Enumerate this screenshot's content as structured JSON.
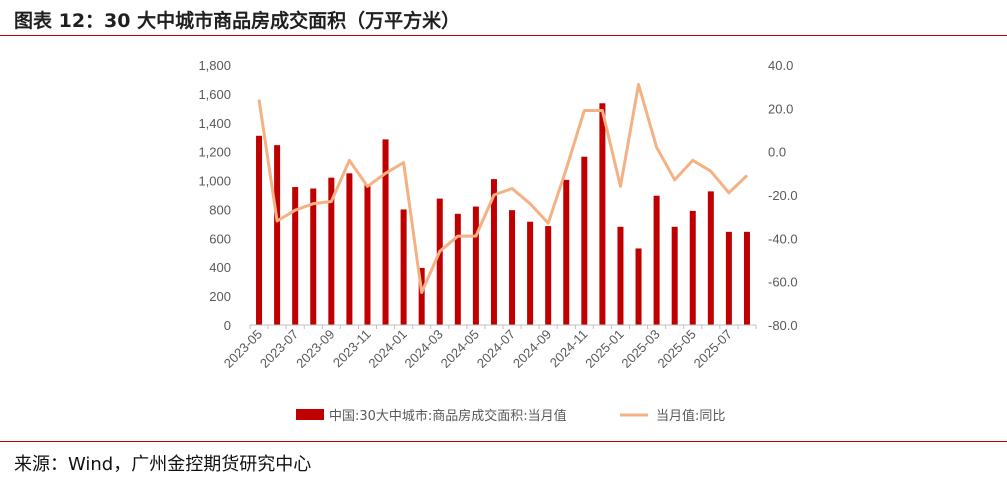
{
  "header": {
    "title": "图表 12：30 大中城市商品房成交面积（万平方米）"
  },
  "footer": {
    "source": "来源：Wind，广州金控期货研究中心"
  },
  "chart_data": {
    "type": "bar+line",
    "title": "",
    "x": [
      "2023-05",
      "2023-06",
      "2023-07",
      "2023-08",
      "2023-09",
      "2023-10",
      "2023-11",
      "2023-12",
      "2024-01",
      "2024-02",
      "2024-03",
      "2024-04",
      "2024-05",
      "2024-06",
      "2024-07",
      "2024-08",
      "2024-09",
      "2024-10",
      "2024-11",
      "2024-12",
      "2025-01",
      "2025-02",
      "2025-03",
      "2025-04",
      "2025-05",
      "2025-06",
      "2025-07",
      "2025-08"
    ],
    "x_tick_labels": [
      "2023-05",
      "2023-07",
      "2023-09",
      "2023-11",
      "2024-01",
      "2024-03",
      "2024-05",
      "2024-07",
      "2024-09",
      "2024-11",
      "2025-01",
      "2025-03",
      "2025-05",
      "2025-07"
    ],
    "y_left": {
      "min": 0,
      "max": 1800,
      "step": 200,
      "tick_labels": [
        "0",
        "200",
        "400",
        "600",
        "800",
        "1,000",
        "1,200",
        "1,400",
        "1,600",
        "1,800"
      ]
    },
    "y_right": {
      "min": -80,
      "max": 40,
      "step": 20,
      "tick_labels": [
        "-80.0",
        "-60.0",
        "-40.0",
        "-20.0",
        "0.0",
        "20.0",
        "40.0"
      ]
    },
    "series": [
      {
        "name": "中国:30大中城市:商品房成交面积:当月值",
        "type": "bar",
        "axis": "left",
        "color": "#c00000",
        "values": [
          1310,
          1245,
          955,
          945,
          1020,
          1050,
          975,
          1285,
          800,
          395,
          875,
          770,
          820,
          1010,
          795,
          715,
          685,
          1005,
          1165,
          1535,
          680,
          530,
          895,
          680,
          790,
          925,
          645,
          645
        ]
      },
      {
        "name": "当月值:同比",
        "type": "line",
        "axis": "right",
        "color": "#f4b183",
        "values": [
          24,
          -32,
          -27,
          -24,
          -23,
          -4,
          -16,
          -10,
          -5,
          -65,
          -46,
          -39,
          -39,
          -20,
          -17,
          -24,
          -33,
          -8,
          19,
          19,
          -16,
          31,
          2,
          -13,
          -4,
          -9,
          -19,
          -11
        ]
      }
    ],
    "legend_position": "bottom"
  }
}
